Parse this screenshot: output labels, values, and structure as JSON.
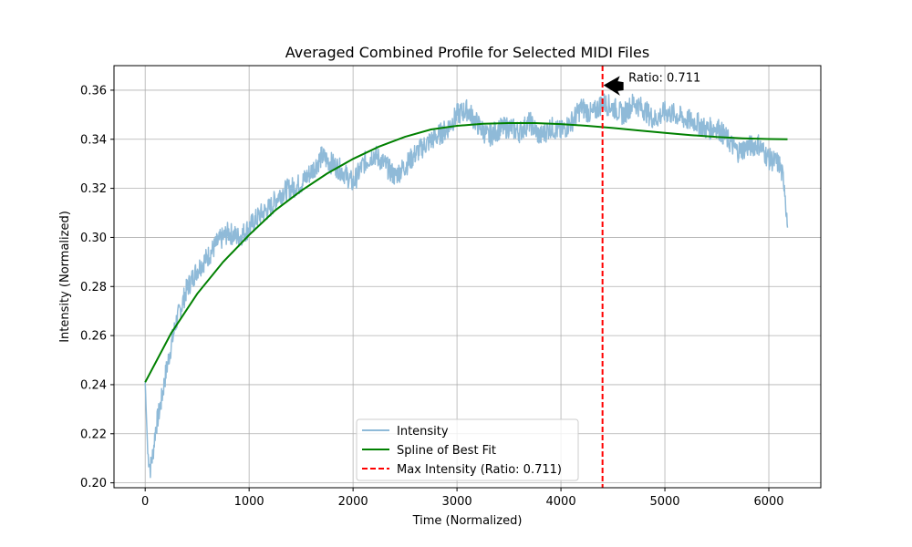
{
  "chart_data": {
    "type": "line",
    "title": "Averaged Combined Profile for Selected MIDI Files",
    "xlabel": "Time (Normalized)",
    "ylabel": "Intensity (Normalized)",
    "xlim": [
      -300,
      6500
    ],
    "ylim": [
      0.198,
      0.37
    ],
    "x_ticks": [
      0,
      1000,
      2000,
      3000,
      4000,
      5000,
      6000
    ],
    "x_tick_labels": [
      "0",
      "1000",
      "2000",
      "3000",
      "4000",
      "5000",
      "6000"
    ],
    "y_ticks": [
      0.2,
      0.22,
      0.24,
      0.26,
      0.28,
      0.3,
      0.32,
      0.34,
      0.36
    ],
    "y_tick_labels": [
      "0.20",
      "0.22",
      "0.24",
      "0.26",
      "0.28",
      "0.30",
      "0.32",
      "0.34",
      "0.36"
    ],
    "grid": true,
    "legend_position": "lower-center",
    "series": [
      {
        "name": "Intensity",
        "color": "#8fbad8",
        "x": [
          0,
          25,
          50,
          75,
          100,
          150,
          200,
          250,
          300,
          350,
          400,
          450,
          500,
          600,
          700,
          800,
          900,
          1000,
          1100,
          1200,
          1300,
          1400,
          1500,
          1600,
          1700,
          1800,
          1900,
          2000,
          2100,
          2200,
          2300,
          2400,
          2500,
          2600,
          2700,
          2800,
          2900,
          3000,
          3100,
          3200,
          3300,
          3400,
          3500,
          3600,
          3700,
          3800,
          3900,
          4000,
          4100,
          4200,
          4300,
          4400,
          4500,
          4600,
          4700,
          4800,
          4900,
          5000,
          5100,
          5200,
          5300,
          5400,
          5500,
          5600,
          5700,
          5800,
          5900,
          6000,
          6100,
          6150,
          6180
        ],
        "y": [
          0.241,
          0.212,
          0.206,
          0.212,
          0.222,
          0.232,
          0.245,
          0.256,
          0.266,
          0.272,
          0.279,
          0.283,
          0.287,
          0.292,
          0.298,
          0.302,
          0.3,
          0.304,
          0.309,
          0.312,
          0.318,
          0.32,
          0.322,
          0.327,
          0.333,
          0.33,
          0.327,
          0.322,
          0.33,
          0.334,
          0.33,
          0.325,
          0.329,
          0.334,
          0.338,
          0.341,
          0.344,
          0.35,
          0.352,
          0.346,
          0.341,
          0.344,
          0.345,
          0.343,
          0.347,
          0.341,
          0.345,
          0.343,
          0.347,
          0.353,
          0.35,
          0.355,
          0.353,
          0.35,
          0.355,
          0.352,
          0.348,
          0.351,
          0.35,
          0.348,
          0.347,
          0.344,
          0.345,
          0.34,
          0.335,
          0.337,
          0.338,
          0.332,
          0.33,
          0.322,
          0.304
        ]
      },
      {
        "name": "Spline of Best Fit",
        "color": "#008000",
        "x": [
          0,
          250,
          500,
          750,
          1000,
          1250,
          1500,
          1750,
          2000,
          2250,
          2500,
          2750,
          3000,
          3250,
          3500,
          3750,
          4000,
          4250,
          4500,
          4750,
          5000,
          5250,
          5500,
          5750,
          6000,
          6180
        ],
        "y": [
          0.241,
          0.261,
          0.277,
          0.29,
          0.301,
          0.311,
          0.319,
          0.326,
          0.332,
          0.337,
          0.341,
          0.344,
          0.3455,
          0.3463,
          0.3466,
          0.3466,
          0.3462,
          0.3455,
          0.3446,
          0.3436,
          0.3426,
          0.3417,
          0.3409,
          0.3404,
          0.3401,
          0.34
        ]
      }
    ],
    "vline": {
      "name": "Max Intensity (Ratio: 0.711)",
      "x": 4400,
      "color": "#ff0000",
      "style": "dashed"
    },
    "annotation": {
      "text": "Ratio: 0.711",
      "point": [
        4400,
        0.362
      ],
      "text_at": [
        4650,
        0.362
      ]
    }
  }
}
